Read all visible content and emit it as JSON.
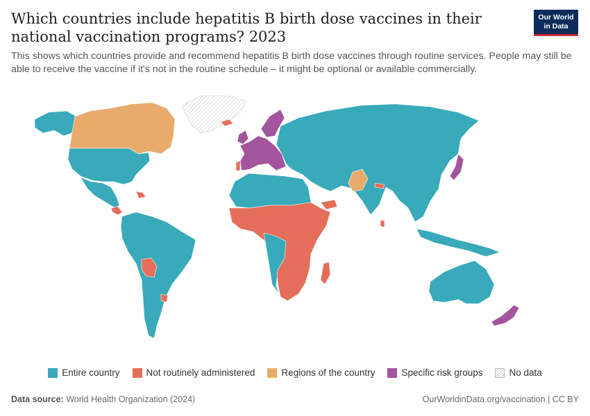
{
  "title": "Which countries include hepatitis B birth dose vaccines in their national vaccination programs? 2023",
  "subtitle": "This shows which countries provide and recommend hepatitis B birth dose vaccines through routine services. People may still be able to receive the vaccine if it's not in the routine schedule – it might be optional or available commercially.",
  "logo": {
    "line1": "Our World",
    "line2": "in Data"
  },
  "legend": [
    {
      "label": "Entire country",
      "color": "#38aaba"
    },
    {
      "label": "Not routinely administered",
      "color": "#e56e5a"
    },
    {
      "label": "Regions of the country",
      "color": "#e9ab6c"
    },
    {
      "label": "Specific risk groups",
      "color": "#a2559c"
    },
    {
      "label": "No data",
      "color": "nodata"
    }
  ],
  "footer": {
    "source_label": "Data source:",
    "source": "World Health Organization (2024)",
    "url": "OurWorldinData.org/vaccination | CC BY"
  },
  "colors": {
    "entire": "#38aaba",
    "not_routine": "#e56e5a",
    "regions": "#e9ab6c",
    "risk": "#a2559c"
  }
}
